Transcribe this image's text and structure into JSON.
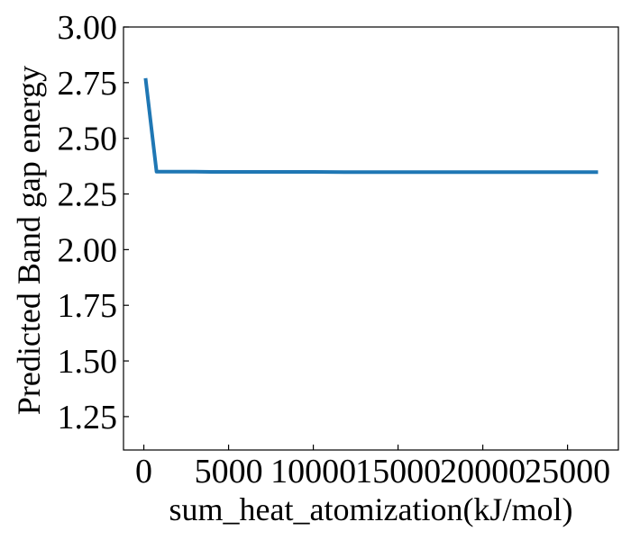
{
  "chart_data": {
    "type": "line",
    "title": "",
    "xlabel": "sum_heat_atomization(kJ/mol)",
    "ylabel": "Predicted Band gap energy",
    "xlim": [
      -1200,
      28000
    ],
    "ylim": [
      1.1,
      3.0
    ],
    "x_ticks": [
      0,
      5000,
      10000,
      15000,
      20000,
      25000
    ],
    "x_tick_labels": [
      "0",
      "5000",
      "10000",
      "15000",
      "20000",
      "25000"
    ],
    "y_ticks": [
      1.25,
      1.5,
      1.75,
      2.0,
      2.25,
      2.5,
      2.75,
      3.0
    ],
    "y_tick_labels": [
      "1.25",
      "1.50",
      "1.75",
      "2.00",
      "2.25",
      "2.50",
      "2.75",
      "3.00"
    ],
    "grid": false,
    "series": [
      {
        "color": "#1f77b4",
        "x": [
          100,
          750,
          1500,
          3000,
          4000,
          6000,
          10000,
          12000,
          15000,
          20000,
          25000,
          26800
        ],
        "y": [
          2.77,
          2.35,
          2.35,
          2.35,
          2.349,
          2.349,
          2.349,
          2.348,
          2.348,
          2.348,
          2.348,
          2.348
        ]
      }
    ]
  }
}
